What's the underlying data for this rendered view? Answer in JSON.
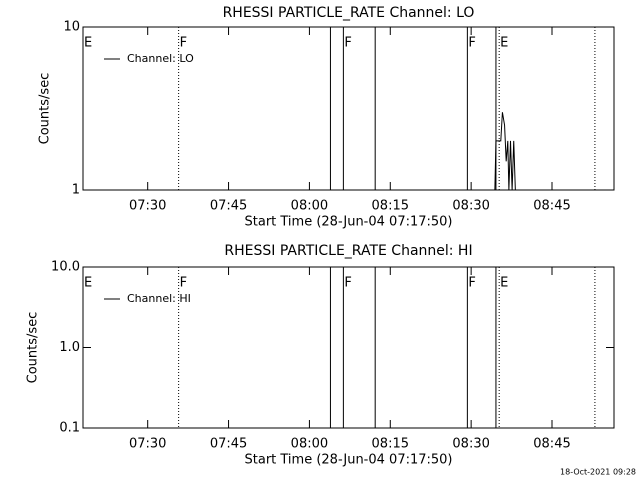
{
  "chart_data": [
    {
      "type": "line",
      "title": "RHESSI PARTICLE_RATE Channel: LO",
      "xlabel": "Start Time (28-Jun-04 07:17:50)",
      "ylabel": "Counts/sec",
      "xlim": [
        438,
        536.5
      ],
      "xticks": [
        {
          "value": 450,
          "label": "07:30"
        },
        {
          "value": 465,
          "label": "07:45"
        },
        {
          "value": 480,
          "label": "08:00"
        },
        {
          "value": 495,
          "label": "08:15"
        },
        {
          "value": 510,
          "label": "08:30"
        },
        {
          "value": 525,
          "label": "08:45"
        }
      ],
      "ylim": [
        1,
        10
      ],
      "yticks": [
        1,
        10
      ],
      "log_y": true,
      "legend": "upper left",
      "series": [
        {
          "name": "Channel: LO",
          "color": "#000000",
          "x": [
            514.4,
            514.6,
            515.5,
            515.8,
            516.2,
            516.5,
            516.8,
            517.0,
            517.3,
            517.6,
            517.9,
            518.2,
            518.5
          ],
          "values": [
            1,
            2,
            2,
            3,
            2.5,
            1.5,
            2,
            1,
            2,
            1,
            2,
            1,
            1
          ]
        }
      ],
      "markers": [
        {
          "x": 455.74,
          "style": "dotted"
        },
        {
          "x": 483.9,
          "style": "solid"
        },
        {
          "x": 486.3,
          "style": "solid"
        },
        {
          "x": 492.2,
          "style": "solid"
        },
        {
          "x": 509.3,
          "style": "solid"
        },
        {
          "x": 514.6,
          "style": "solid"
        },
        {
          "x": 515.2,
          "style": "dotted"
        },
        {
          "x": 532.96,
          "style": "dotted"
        }
      ],
      "flags": [
        {
          "label": "E",
          "x": 438
        },
        {
          "label": "F",
          "x": 455.74
        },
        {
          "label": "F",
          "x": 486.3
        },
        {
          "label": "F",
          "x": 509.3
        },
        {
          "label": "E",
          "x": 515.2
        }
      ]
    },
    {
      "type": "line",
      "title": "RHESSI PARTICLE_RATE Channel: HI",
      "xlabel": "Start Time (28-Jun-04 07:17:50)",
      "ylabel": "Counts/sec",
      "xlim": [
        438,
        536.5
      ],
      "xticks": [
        {
          "value": 450,
          "label": "07:30"
        },
        {
          "value": 465,
          "label": "07:45"
        },
        {
          "value": 480,
          "label": "08:00"
        },
        {
          "value": 495,
          "label": "08:15"
        },
        {
          "value": 510,
          "label": "08:30"
        },
        {
          "value": 525,
          "label": "08:45"
        }
      ],
      "ylim": [
        0.1,
        10
      ],
      "yticks": [
        0.1,
        {
          "value": 1,
          "label": "1.0"
        },
        {
          "value": 10,
          "label": "10.0"
        }
      ],
      "log_y": true,
      "legend": "upper left",
      "series": [
        {
          "name": "Channel: HI",
          "color": "#000000",
          "x": [],
          "values": []
        }
      ],
      "markers": [
        {
          "x": 455.74,
          "style": "dotted"
        },
        {
          "x": 483.9,
          "style": "solid"
        },
        {
          "x": 486.3,
          "style": "solid"
        },
        {
          "x": 492.2,
          "style": "solid"
        },
        {
          "x": 509.3,
          "style": "solid"
        },
        {
          "x": 514.6,
          "style": "solid"
        },
        {
          "x": 515.2,
          "style": "dotted"
        },
        {
          "x": 532.96,
          "style": "dotted"
        }
      ],
      "flags": [
        {
          "label": "E",
          "x": 438
        },
        {
          "label": "F",
          "x": 455.74
        },
        {
          "label": "F",
          "x": 486.3
        },
        {
          "label": "F",
          "x": 509.3
        },
        {
          "label": "E",
          "x": 515.2
        }
      ]
    }
  ],
  "footer": "18-Oct-2021 09:28"
}
